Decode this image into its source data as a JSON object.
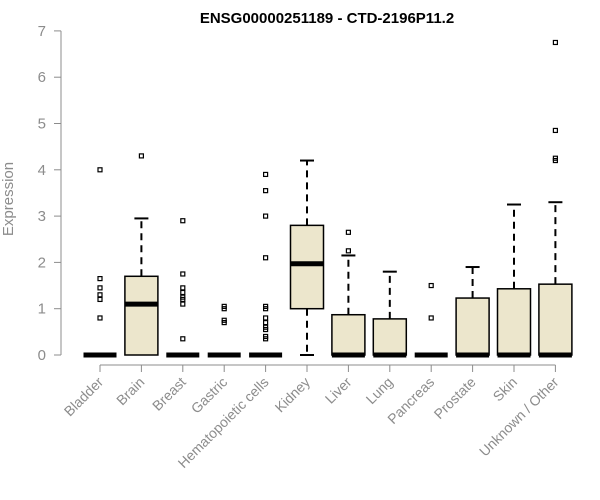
{
  "chart_data": {
    "type": "boxplot",
    "title": "ENSG00000251189 - CTD-2196P11.2",
    "xlabel": "",
    "ylabel": "Expression",
    "ylim": [
      0,
      7
    ],
    "yticks": [
      0,
      1,
      2,
      3,
      4,
      5,
      6,
      7
    ],
    "grid": false,
    "box_fill": "#ece6cc",
    "box_stroke": "#000000",
    "axis_color": "#8c8c8c",
    "categories": [
      "Bladder",
      "Brain",
      "Breast",
      "Gastric",
      "Hematopoietic cells",
      "Kidney",
      "Liver",
      "Lung",
      "Pancreas",
      "Prostate",
      "Skin",
      "Unknown / Other"
    ],
    "boxes": [
      {
        "category": "Bladder",
        "whisker_low": 0,
        "q1": 0,
        "median": 0,
        "q3": 0,
        "whisker_high": 0,
        "outliers": [
          4.0,
          1.65,
          1.45,
          1.3,
          1.2,
          0.8
        ]
      },
      {
        "category": "Brain",
        "whisker_low": 0,
        "q1": 0,
        "median": 1.1,
        "q3": 1.7,
        "whisker_high": 2.95,
        "outliers": [
          4.3
        ]
      },
      {
        "category": "Breast",
        "whisker_low": 0,
        "q1": 0,
        "median": 0,
        "q3": 0,
        "whisker_high": 0,
        "outliers": [
          2.9,
          1.75,
          1.45,
          1.35,
          1.25,
          1.2,
          1.1,
          0.35
        ]
      },
      {
        "category": "Gastric",
        "whisker_low": 0,
        "q1": 0,
        "median": 0,
        "q3": 0,
        "whisker_high": 0,
        "outliers": [
          1.05,
          1.0,
          0.75,
          0.7
        ]
      },
      {
        "category": "Hematopoietic cells",
        "whisker_low": 0,
        "q1": 0,
        "median": 0,
        "q3": 0,
        "whisker_high": 0,
        "outliers": [
          3.9,
          3.55,
          3.0,
          2.1,
          1.05,
          1.0,
          0.8,
          0.7,
          0.6,
          0.55,
          0.4,
          0.35
        ]
      },
      {
        "category": "Kidney",
        "whisker_low": 0,
        "q1": 1.0,
        "median": 1.97,
        "q3": 2.8,
        "whisker_high": 4.2,
        "outliers": []
      },
      {
        "category": "Liver",
        "whisker_low": 0,
        "q1": 0,
        "median": 0,
        "q3": 0.87,
        "whisker_high": 2.15,
        "outliers": [
          2.65,
          2.25
        ]
      },
      {
        "category": "Lung",
        "whisker_low": 0,
        "q1": 0,
        "median": 0,
        "q3": 0.78,
        "whisker_high": 1.8,
        "outliers": []
      },
      {
        "category": "Pancreas",
        "whisker_low": 0,
        "q1": 0,
        "median": 0,
        "q3": 0,
        "whisker_high": 0,
        "outliers": [
          1.5,
          0.8
        ]
      },
      {
        "category": "Prostate",
        "whisker_low": 0,
        "q1": 0,
        "median": 0,
        "q3": 1.23,
        "whisker_high": 1.9,
        "outliers": []
      },
      {
        "category": "Skin",
        "whisker_low": 0,
        "q1": 0,
        "median": 0,
        "q3": 1.43,
        "whisker_high": 3.25,
        "outliers": []
      },
      {
        "category": "Unknown / Other",
        "whisker_low": 0,
        "q1": 0,
        "median": 0,
        "q3": 1.53,
        "whisker_high": 3.3,
        "outliers": [
          6.75,
          4.85,
          4.25,
          4.2
        ]
      }
    ]
  }
}
